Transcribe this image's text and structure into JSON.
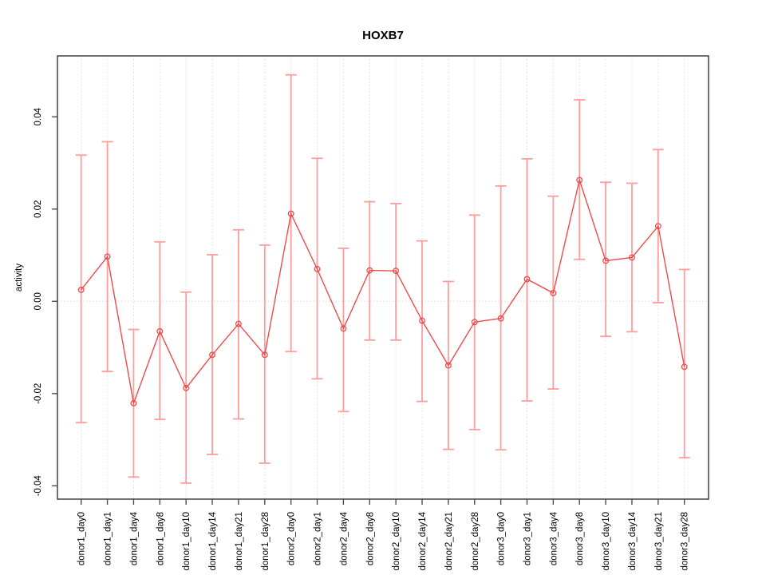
{
  "chart_data": {
    "type": "line",
    "title": "HOXB7",
    "xlabel": "",
    "ylabel": "activity",
    "legend": "none",
    "grid": "vertical dotted gridline at each category; dotted horizontal line at y=0",
    "marker": "open-circle",
    "error_bars": true,
    "ylim": [
      -0.0435,
      0.0532
    ],
    "yticks": [
      -0.04,
      -0.02,
      0,
      0.02,
      0.04
    ],
    "ytick_labels": [
      "-0.04",
      "-0.02",
      "0.00",
      "0.02",
      "0.04"
    ],
    "categories": [
      "donor1_day0",
      "donor1_day1",
      "donor1_day4",
      "donor1_day8",
      "donor1_day10",
      "donor1_day14",
      "donor1_day21",
      "donor1_day28",
      "donor2_day0",
      "donor2_day1",
      "donor2_day4",
      "donor2_day8",
      "donor2_day10",
      "donor2_day14",
      "donor2_day21",
      "donor2_day28",
      "donor3_day0",
      "donor3_day1",
      "donor3_day4",
      "donor3_day8",
      "donor3_day10",
      "donor3_day14",
      "donor3_day21",
      "donor3_day28"
    ],
    "series": [
      {
        "name": "activity",
        "values": [
          0.0025,
          0.0097,
          -0.0221,
          -0.0065,
          -0.0188,
          -0.0116,
          -0.0049,
          -0.0116,
          0.019,
          0.007,
          -0.0059,
          0.0067,
          0.0066,
          -0.0042,
          -0.0139,
          -0.0045,
          -0.0037,
          0.0048,
          0.0018,
          0.0263,
          0.0088,
          0.0095,
          0.0163,
          -0.0142
        ],
        "error_high": [
          0.0317,
          0.0346,
          -0.0061,
          0.0129,
          0.002,
          0.0101,
          0.0155,
          0.0122,
          0.0491,
          0.031,
          0.0115,
          0.0216,
          0.0212,
          0.0131,
          0.0043,
          0.0187,
          0.025,
          0.0309,
          0.0228,
          0.0437,
          0.0258,
          0.0256,
          0.0329,
          0.0069
        ],
        "error_low": [
          -0.0263,
          -0.0152,
          -0.0381,
          -0.0256,
          -0.0394,
          -0.0332,
          -0.0255,
          -0.0351,
          -0.0109,
          -0.0168,
          -0.0239,
          -0.0084,
          -0.0084,
          -0.0217,
          -0.0321,
          -0.0278,
          -0.0322,
          -0.0216,
          -0.019,
          0.0091,
          -0.0076,
          -0.0066,
          -0.0003,
          -0.0339
        ]
      }
    ],
    "colors": {
      "point_line": "#EF4B4B",
      "error_bar": "#FF9C9C",
      "gridline": "#DEDEDE",
      "zero_line": "#DADADA",
      "box": "#4D4D4D",
      "text": "#000000"
    }
  }
}
